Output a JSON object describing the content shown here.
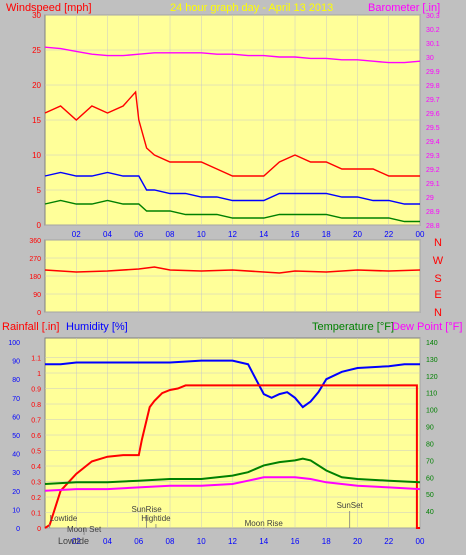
{
  "header": {
    "left_title": "Windspeed [mph]",
    "center_title": "24 hour graph day - April 13 2013",
    "right_title": "Barometer [.in]"
  },
  "colors": {
    "background": "#c0c0c0",
    "plot_bg": "#ffff99",
    "grid": "#c8c8c8",
    "wind_max": "#ff0000",
    "wind_avg": "#0000ff",
    "wind_min": "#008000",
    "barometer": "#ff00ff",
    "direction": "#ff0000",
    "rain": "#ff0000",
    "humidity": "#0000ff",
    "temperature": "#008000",
    "dewpoint": "#ff00ff"
  },
  "chart_data": [
    {
      "id": "wind-baro",
      "type": "line",
      "x_ticks": [
        "02",
        "04",
        "06",
        "08",
        "10",
        "12",
        "14",
        "16",
        "18",
        "20",
        "22",
        "00"
      ],
      "x_range_hours": [
        0,
        24
      ],
      "left_axis": {
        "label": "Windspeed [mph]",
        "range": [
          0,
          30
        ],
        "ticks": [
          "0",
          "5",
          "10",
          "15",
          "20",
          "25",
          "30"
        ]
      },
      "right_axis": {
        "label": "Barometer [.in]",
        "range": [
          28.8,
          30.3
        ],
        "ticks": [
          "28.8",
          "28.9",
          "29",
          "29.1",
          "29.2",
          "29.3",
          "29.4",
          "29.5",
          "29.6",
          "29.7",
          "29.8",
          "29.9",
          "30",
          "30.1",
          "30.2",
          "30.3"
        ]
      },
      "series": [
        {
          "color": "#ff00ff",
          "axis": "right",
          "points": [
            [
              0,
              30.07
            ],
            [
              1,
              30.06
            ],
            [
              2,
              30.04
            ],
            [
              3,
              30.02
            ],
            [
              4,
              30.01
            ],
            [
              5,
              30.01
            ],
            [
              6,
              30.02
            ],
            [
              7,
              30.03
            ],
            [
              8,
              30.03
            ],
            [
              9,
              30.03
            ],
            [
              10,
              30.03
            ],
            [
              11,
              30.02
            ],
            [
              12,
              30.02
            ],
            [
              13,
              30.01
            ],
            [
              14,
              30.01
            ],
            [
              15,
              30.0
            ],
            [
              16,
              30.0
            ],
            [
              17,
              29.99
            ],
            [
              18,
              29.99
            ],
            [
              19,
              29.98
            ],
            [
              20,
              29.98
            ],
            [
              21,
              29.97
            ],
            [
              22,
              29.96
            ],
            [
              23,
              29.96
            ],
            [
              24,
              29.97
            ]
          ]
        },
        {
          "color": "#ff0000",
          "axis": "left",
          "points": [
            [
              0,
              16
            ],
            [
              1,
              17
            ],
            [
              2,
              15
            ],
            [
              3,
              17
            ],
            [
              4,
              16
            ],
            [
              5,
              17
            ],
            [
              5.8,
              19
            ],
            [
              6,
              15
            ],
            [
              6.5,
              11
            ],
            [
              7,
              10
            ],
            [
              8,
              9
            ],
            [
              9,
              9
            ],
            [
              10,
              9
            ],
            [
              11,
              8
            ],
            [
              12,
              7
            ],
            [
              13,
              7
            ],
            [
              14,
              7
            ],
            [
              15,
              9
            ],
            [
              16,
              10
            ],
            [
              17,
              9
            ],
            [
              18,
              9
            ],
            [
              19,
              8
            ],
            [
              20,
              8
            ],
            [
              21,
              8
            ],
            [
              22,
              7
            ],
            [
              23,
              7
            ],
            [
              24,
              7
            ]
          ]
        },
        {
          "color": "#0000ff",
          "axis": "left",
          "points": [
            [
              0,
              7
            ],
            [
              1,
              7.5
            ],
            [
              2,
              7
            ],
            [
              3,
              7
            ],
            [
              4,
              7.5
            ],
            [
              5,
              7
            ],
            [
              6,
              7
            ],
            [
              6.5,
              5
            ],
            [
              7,
              5
            ],
            [
              8,
              4.5
            ],
            [
              9,
              4.5
            ],
            [
              10,
              4
            ],
            [
              11,
              4
            ],
            [
              12,
              3.5
            ],
            [
              13,
              3.5
            ],
            [
              14,
              3.5
            ],
            [
              15,
              4.5
            ],
            [
              16,
              4.5
            ],
            [
              17,
              4.5
            ],
            [
              18,
              4.5
            ],
            [
              19,
              4
            ],
            [
              20,
              4
            ],
            [
              21,
              3.5
            ],
            [
              22,
              3.5
            ],
            [
              23,
              3
            ],
            [
              24,
              3
            ]
          ]
        },
        {
          "color": "#008000",
          "axis": "left",
          "points": [
            [
              0,
              3
            ],
            [
              1,
              3.5
            ],
            [
              2,
              3
            ],
            [
              3,
              3
            ],
            [
              4,
              3.5
            ],
            [
              5,
              3
            ],
            [
              6,
              3
            ],
            [
              6.5,
              2
            ],
            [
              7,
              2
            ],
            [
              8,
              2
            ],
            [
              9,
              1.5
            ],
            [
              10,
              1.5
            ],
            [
              11,
              1.5
            ],
            [
              12,
              1
            ],
            [
              13,
              1
            ],
            [
              14,
              1
            ],
            [
              15,
              1.5
            ],
            [
              16,
              1.5
            ],
            [
              17,
              1.5
            ],
            [
              18,
              1.5
            ],
            [
              19,
              1
            ],
            [
              20,
              1
            ],
            [
              21,
              1
            ],
            [
              22,
              1
            ],
            [
              23,
              0.5
            ],
            [
              24,
              0.5
            ]
          ]
        }
      ]
    },
    {
      "id": "wind-direction",
      "type": "line",
      "x_range_hours": [
        0,
        24
      ],
      "left_axis": {
        "range": [
          0,
          360
        ],
        "ticks": [
          "0",
          "90",
          "180",
          "270",
          "360"
        ]
      },
      "right_labels": [
        "N",
        "W",
        "S",
        "E",
        "N"
      ],
      "series": [
        {
          "color": "#ff0000",
          "points": [
            [
              0,
              210
            ],
            [
              2,
              200
            ],
            [
              4,
              205
            ],
            [
              6,
              215
            ],
            [
              7,
              225
            ],
            [
              8,
              210
            ],
            [
              10,
              205
            ],
            [
              12,
              210
            ],
            [
              14,
              200
            ],
            [
              15,
              195
            ],
            [
              16,
              205
            ],
            [
              18,
              200
            ],
            [
              20,
              210
            ],
            [
              22,
              205
            ],
            [
              24,
              210
            ]
          ]
        }
      ]
    },
    {
      "id": "rain-hum-temp",
      "type": "line",
      "x_ticks": [
        "02",
        "04",
        "06",
        "08",
        "10",
        "12",
        "14",
        "16",
        "18",
        "20",
        "22",
        "00"
      ],
      "x_range_hours": [
        0,
        24
      ],
      "left_inner_axis": {
        "label": "Rainfall [.in]",
        "range": [
          0,
          1.2
        ],
        "ticks": [
          "0",
          "0.1",
          "0.2",
          "0.3",
          "0.4",
          "0.5",
          "0.6",
          "0.7",
          "0.8",
          "0.9",
          "1",
          "1.1"
        ]
      },
      "left_outer_axis": {
        "label": "Humidity [%]",
        "range": [
          0,
          100
        ],
        "ticks": [
          "0",
          "10",
          "20",
          "30",
          "40",
          "50",
          "60",
          "70",
          "80",
          "90",
          "100"
        ]
      },
      "right_axis": {
        "label": "Temperature [°F]",
        "range": [
          30,
          140
        ],
        "ticks": [
          "40",
          "50",
          "60",
          "70",
          "80",
          "90",
          "100",
          "110",
          "120",
          "130",
          "140"
        ]
      },
      "dewpoint_label": "Dew Point [°F]",
      "series": [
        {
          "color": "#0000ff",
          "axis": "humidity",
          "points": [
            [
              0,
              88
            ],
            [
              1,
              88
            ],
            [
              2,
              89
            ],
            [
              4,
              89
            ],
            [
              6,
              89
            ],
            [
              8,
              89
            ],
            [
              10,
              90
            ],
            [
              12,
              90
            ],
            [
              13,
              88
            ],
            [
              13.5,
              80
            ],
            [
              14,
              72
            ],
            [
              14.5,
              70
            ],
            [
              15,
              72
            ],
            [
              15.5,
              73
            ],
            [
              16,
              70
            ],
            [
              16.5,
              65
            ],
            [
              17,
              68
            ],
            [
              17.5,
              73
            ],
            [
              18,
              80
            ],
            [
              19,
              84
            ],
            [
              20,
              86
            ],
            [
              22,
              87
            ],
            [
              23,
              88
            ],
            [
              24,
              88
            ]
          ]
        },
        {
          "color": "#ff0000",
          "axis": "rain",
          "points": [
            [
              0,
              0
            ],
            [
              0.3,
              0.02
            ],
            [
              1,
              0.24
            ],
            [
              2,
              0.35
            ],
            [
              3,
              0.43
            ],
            [
              4,
              0.46
            ],
            [
              5,
              0.47
            ],
            [
              6,
              0.47
            ],
            [
              6.2,
              0.57
            ],
            [
              6.7,
              0.78
            ],
            [
              7,
              0.82
            ],
            [
              7.5,
              0.87
            ],
            [
              8,
              0.89
            ],
            [
              8.5,
              0.9
            ],
            [
              9,
              0.92
            ],
            [
              10,
              0.92
            ],
            [
              12,
              0.92
            ],
            [
              16,
              0.92
            ],
            [
              20,
              0.92
            ],
            [
              23.8,
              0.92
            ],
            [
              23.8,
              0
            ],
            [
              24,
              0
            ]
          ]
        },
        {
          "color": "#008000",
          "axis": "temp",
          "points": [
            [
              0,
              56
            ],
            [
              2,
              57
            ],
            [
              4,
              57
            ],
            [
              6,
              58
            ],
            [
              8,
              59
            ],
            [
              10,
              59
            ],
            [
              12,
              61
            ],
            [
              13,
              63
            ],
            [
              14,
              67
            ],
            [
              15,
              69
            ],
            [
              16,
              70
            ],
            [
              16.5,
              71
            ],
            [
              17,
              70
            ],
            [
              18,
              64
            ],
            [
              19,
              60
            ],
            [
              20,
              59
            ],
            [
              22,
              58
            ],
            [
              24,
              57
            ]
          ]
        },
        {
          "color": "#ff00ff",
          "axis": "temp",
          "points": [
            [
              0,
              52
            ],
            [
              2,
              53
            ],
            [
              4,
              53
            ],
            [
              6,
              54
            ],
            [
              8,
              55
            ],
            [
              10,
              55
            ],
            [
              12,
              56
            ],
            [
              13,
              58
            ],
            [
              14,
              60
            ],
            [
              15,
              60
            ],
            [
              16,
              60
            ],
            [
              17,
              59
            ],
            [
              18,
              57
            ],
            [
              19,
              56
            ],
            [
              20,
              55
            ],
            [
              22,
              54
            ],
            [
              24,
              53
            ]
          ]
        }
      ],
      "events": [
        {
          "label": "Lowtide",
          "hour": 0.3
        },
        {
          "label": "Moon Set",
          "hour": 2.5
        },
        {
          "label": "SunRise",
          "hour": 6.5
        },
        {
          "label": "Hightide",
          "hour": 7.1
        },
        {
          "label": "Moon Rise",
          "hour": 14
        },
        {
          "label": "SunSet",
          "hour": 19.5
        }
      ],
      "bottom_label": "Lowtide"
    }
  ]
}
